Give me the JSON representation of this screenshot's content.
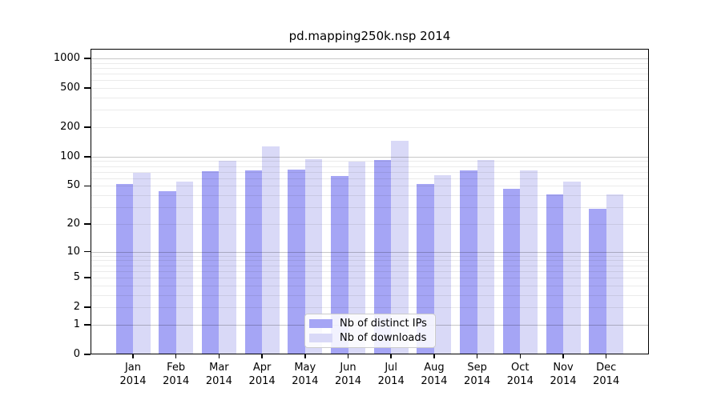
{
  "chart_data": {
    "type": "bar",
    "title": "pd.mapping250k.nsp 2014",
    "yscale": "log1p",
    "grid": "on",
    "categories": [
      "Jan 2014",
      "Feb 2014",
      "Mar 2014",
      "Apr 2014",
      "May 2014",
      "Jun 2014",
      "Jul 2014",
      "Aug 2014",
      "Sep 2014",
      "Oct 2014",
      "Nov 2014",
      "Dec 2014"
    ],
    "series": [
      {
        "name": "Nb of distinct IPs",
        "color": "#a5a5f5",
        "values": [
          52,
          44,
          71,
          72,
          74,
          63,
          92,
          52,
          72,
          47,
          41,
          29
        ]
      },
      {
        "name": "Nb of downloads",
        "color": "#d9d9f7",
        "values": [
          68,
          56,
          91,
          128,
          95,
          89,
          145,
          64,
          93,
          72,
          56,
          41
        ]
      }
    ],
    "y_tick_values": [
      1000,
      500,
      200,
      100,
      50,
      20,
      10,
      5,
      2,
      1,
      0
    ],
    "y_tick_labels": [
      "1000",
      "500",
      "200",
      "100",
      "50",
      "20",
      "10",
      "5",
      "2",
      "1",
      "0"
    ],
    "ylim": [
      0,
      1250
    ],
    "legend": {
      "labels": [
        "Nb of distinct IPs",
        "Nb of downloads"
      ],
      "position": "lower center"
    }
  },
  "colors": {
    "distinct_ips_bar": "#a5a5f5",
    "downloads_bar": "#d9d9f7",
    "major_gridline": "rgba(0,0,0,0.22)",
    "minor_gridline": "rgba(0,0,0,0.08)",
    "axis": "#000000",
    "background": "#ffffff"
  }
}
